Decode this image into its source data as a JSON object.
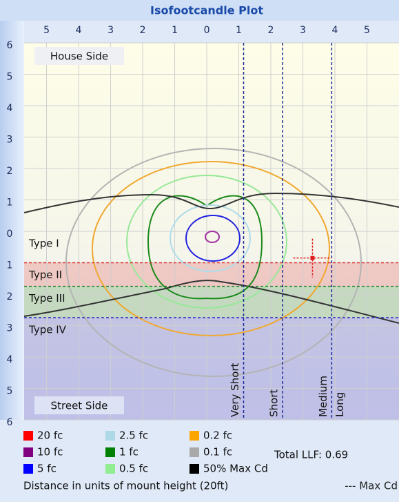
{
  "chart_data": {
    "type": "contour",
    "title": "Isofootcandle Plot",
    "xlim": [
      -5.7,
      6.0
    ],
    "ylim": [
      -6,
      6
    ],
    "xticks": [
      {
        "value": -5,
        "label": "5"
      },
      {
        "value": -4,
        "label": "4"
      },
      {
        "value": -3,
        "label": "3"
      },
      {
        "value": -2,
        "label": "2"
      },
      {
        "value": -1,
        "label": "1"
      },
      0,
      1,
      2,
      3,
      4,
      5
    ],
    "yticks": [
      6,
      5,
      4,
      3,
      2,
      1,
      0,
      {
        "value": -1,
        "label": "1"
      },
      {
        "value": -2,
        "label": "2"
      },
      {
        "value": -3,
        "label": "3"
      },
      {
        "value": -4,
        "label": "4"
      },
      {
        "value": -5,
        "label": "5"
      },
      {
        "value": -6,
        "label": "6"
      }
    ],
    "grid": true,
    "house_label": "House Side",
    "street_label": "Street Side",
    "types": [
      {
        "name": "Type I",
        "top": 0,
        "bottom": -1
      },
      {
        "name": "Type II",
        "top": -1,
        "bottom": -1.75,
        "color": "#e03030"
      },
      {
        "name": "Type III",
        "top": -1.75,
        "bottom": -2.75,
        "color": "#208020"
      },
      {
        "name": "Type IV",
        "top": -2.75,
        "bottom": -6,
        "color": "#2020c0"
      }
    ],
    "distances": [
      {
        "name": "Very Short",
        "x": 1.15
      },
      {
        "name": "Short",
        "x": 2.37
      },
      {
        "name": "Medium",
        "x": 3.9
      }
    ],
    "long_label": "Long",
    "max_cd": {
      "x": 3.3,
      "y": -0.85,
      "color": "#e02020"
    },
    "legend": [
      {
        "name": "20 fc",
        "color": "#ff0000"
      },
      {
        "name": "10 fc",
        "color": "#800080"
      },
      {
        "name": "5 fc",
        "color": "#0000ff"
      },
      {
        "name": "2.5 fc",
        "color": "#add8e6"
      },
      {
        "name": "1 fc",
        "color": "#008000"
      },
      {
        "name": "0.5 fc",
        "color": "#90ee90"
      },
      {
        "name": "0.2 fc",
        "color": "#ffa500"
      },
      {
        "name": "0.1 fc",
        "color": "#a9a9a9"
      },
      {
        "name": "50% Max Cd",
        "color": "#000000"
      }
    ],
    "total_llf": "Total LLF: 0.69",
    "footer": "Distance in units of mount height (20ft)",
    "max_cd_legend": "--- Max Cd"
  }
}
